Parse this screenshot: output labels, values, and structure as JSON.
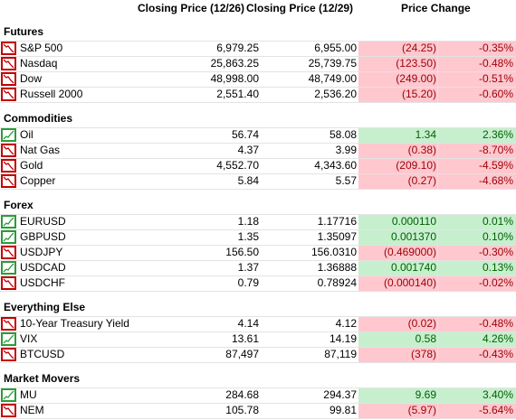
{
  "header": {
    "col1": "Closing Price (12/26)",
    "col2": "Closing Price (12/29)",
    "change": "Price Change"
  },
  "sections": [
    {
      "title": "Futures",
      "rows": [
        {
          "name": "S&P 500",
          "close1": "6,979.25",
          "close2": "6,955.00",
          "change": "(24.25)",
          "pct": "-0.35%",
          "trend": "down"
        },
        {
          "name": "Nasdaq",
          "close1": "25,863.25",
          "close2": "25,739.75",
          "change": "(123.50)",
          "pct": "-0.48%",
          "trend": "down"
        },
        {
          "name": "Dow",
          "close1": "48,998.00",
          "close2": "48,749.00",
          "change": "(249.00)",
          "pct": "-0.51%",
          "trend": "down"
        },
        {
          "name": "Russell 2000",
          "close1": "2,551.40",
          "close2": "2,536.20",
          "change": "(15.20)",
          "pct": "-0.60%",
          "trend": "down"
        }
      ]
    },
    {
      "title": "Commodities",
      "rows": [
        {
          "name": "Oil",
          "close1": "56.74",
          "close2": "58.08",
          "change": "1.34",
          "pct": "2.36%",
          "trend": "up"
        },
        {
          "name": "Nat Gas",
          "close1": "4.37",
          "close2": "3.99",
          "change": "(0.38)",
          "pct": "-8.70%",
          "trend": "down"
        },
        {
          "name": "Gold",
          "close1": "4,552.70",
          "close2": "4,343.60",
          "change": "(209.10)",
          "pct": "-4.59%",
          "trend": "down"
        },
        {
          "name": "Copper",
          "close1": "5.84",
          "close2": "5.57",
          "change": "(0.27)",
          "pct": "-4.68%",
          "trend": "down"
        }
      ]
    },
    {
      "title": "Forex",
      "rows": [
        {
          "name": "EURUSD",
          "close1": "1.18",
          "close2": "1.17716",
          "change": "0.000110",
          "pct": "0.01%",
          "trend": "up"
        },
        {
          "name": "GBPUSD",
          "close1": "1.35",
          "close2": "1.35097",
          "change": "0.001370",
          "pct": "0.10%",
          "trend": "up"
        },
        {
          "name": "USDJPY",
          "close1": "156.50",
          "close2": "156.0310",
          "change": "(0.469000)",
          "pct": "-0.30%",
          "trend": "down"
        },
        {
          "name": "USDCAD",
          "close1": "1.37",
          "close2": "1.36888",
          "change": "0.001740",
          "pct": "0.13%",
          "trend": "up"
        },
        {
          "name": "USDCHF",
          "close1": "0.79",
          "close2": "0.78924",
          "change": "(0.000140)",
          "pct": "-0.02%",
          "trend": "down"
        }
      ]
    },
    {
      "title": "Everything Else",
      "rows": [
        {
          "name": "10-Year Treasury Yield",
          "close1": "4.14",
          "close2": "4.12",
          "change": "(0.02)",
          "pct": "-0.48%",
          "trend": "down"
        },
        {
          "name": "VIX",
          "close1": "13.61",
          "close2": "14.19",
          "change": "0.58",
          "pct": "4.26%",
          "trend": "up"
        },
        {
          "name": "BTCUSD",
          "close1": "87,497",
          "close2": "87,119",
          "change": "(378)",
          "pct": "-0.43%",
          "trend": "down"
        }
      ]
    },
    {
      "title": "Market Movers",
      "rows": [
        {
          "name": "MU",
          "close1": "284.68",
          "close2": "294.37",
          "change": "9.69",
          "pct": "3.40%",
          "trend": "up"
        },
        {
          "name": "NEM",
          "close1": "105.78",
          "close2": "99.81",
          "change": "(5.97)",
          "pct": "-5.64%",
          "trend": "down"
        }
      ]
    }
  ]
}
